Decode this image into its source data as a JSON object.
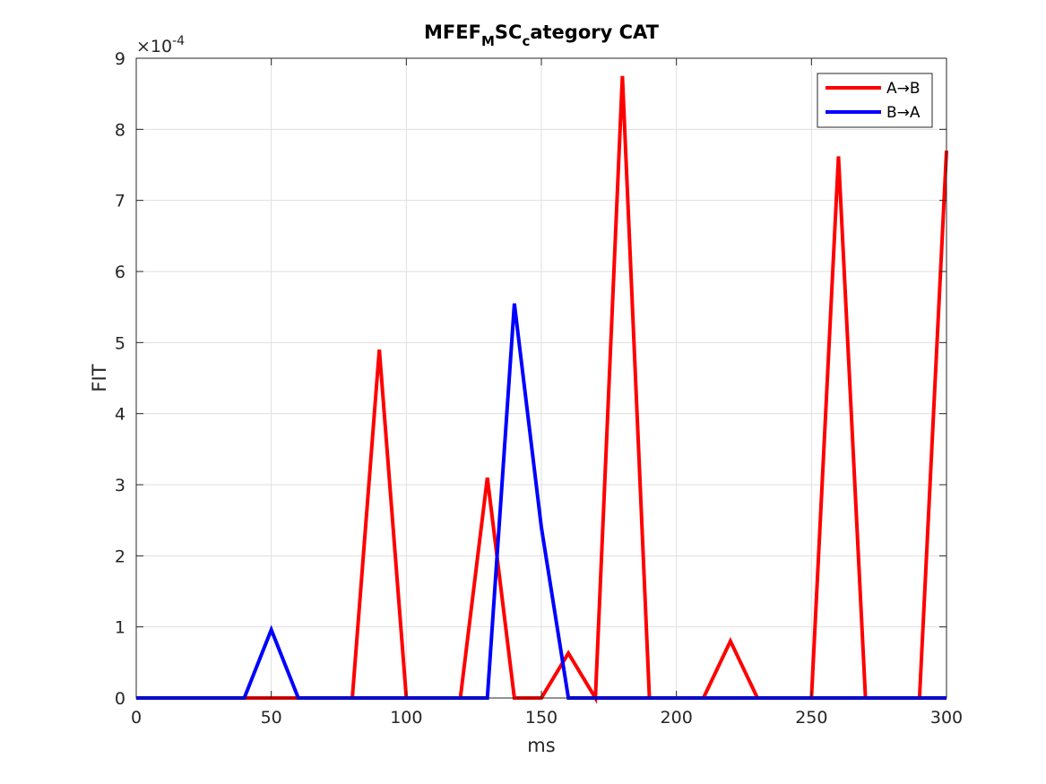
{
  "chart_data": {
    "type": "line",
    "title": {
      "p1": "MFEF",
      "s1": "M",
      "p2": "SC",
      "s2": "c",
      "p3": "ategory CAT"
    },
    "xlabel": "ms",
    "ylabel": "FIT",
    "y_exponent_label": "×10",
    "y_exponent_value": "-4",
    "xlim": [
      0,
      300
    ],
    "ylim": [
      0,
      9
    ],
    "xticks": [
      "0",
      "50",
      "100",
      "150",
      "200",
      "250",
      "300"
    ],
    "yticks": [
      "0",
      "1",
      "2",
      "3",
      "4",
      "5",
      "6",
      "7",
      "8",
      "9"
    ],
    "grid": true,
    "legend": "top-right",
    "x": [
      0,
      10,
      20,
      30,
      40,
      50,
      60,
      70,
      80,
      90,
      100,
      110,
      120,
      130,
      140,
      150,
      160,
      170,
      180,
      190,
      200,
      210,
      220,
      230,
      240,
      250,
      260,
      270,
      280,
      290,
      300
    ],
    "series": [
      {
        "name": "A→B",
        "color": "#ff0000",
        "values": [
          0,
          0,
          0,
          0,
          0,
          0,
          0,
          0,
          0,
          4.9,
          0,
          0,
          0,
          3.1,
          0,
          0,
          0.63,
          0,
          8.75,
          0,
          0,
          0,
          0.8,
          0,
          0,
          0,
          7.62,
          0,
          0,
          0,
          7.7
        ]
      },
      {
        "name": "B→A",
        "color": "#0000ff",
        "values": [
          0,
          0,
          0,
          0,
          0,
          0.96,
          0,
          0,
          0,
          0,
          0,
          0,
          0,
          0,
          5.55,
          2.4,
          0,
          0,
          0,
          0,
          0,
          0,
          0,
          0,
          0,
          0,
          0,
          0,
          0,
          0,
          0
        ]
      }
    ]
  }
}
